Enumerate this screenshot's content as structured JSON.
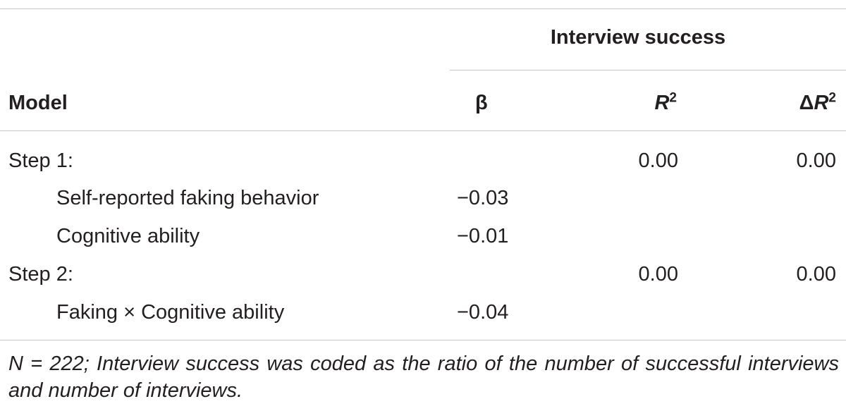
{
  "table": {
    "group_header": "Interview success",
    "columns": {
      "model": "Model",
      "beta": "β",
      "r2_letter": "R",
      "r2_exp": "2",
      "dr2_delta": "Δ",
      "dr2_letter": "R",
      "dr2_exp": "2"
    },
    "rows": [
      {
        "label": "Step 1:",
        "beta": "",
        "r2": "0.00",
        "dr2": "0.00"
      },
      {
        "label": "Self-reported faking behavior",
        "beta": "−0.03",
        "r2": "",
        "dr2": ""
      },
      {
        "label": "Cognitive ability",
        "beta": "−0.01",
        "r2": "",
        "dr2": ""
      },
      {
        "label": "Step 2:",
        "beta": "",
        "r2": "0.00",
        "dr2": "0.00"
      },
      {
        "label": "Faking × Cognitive ability",
        "beta": "−0.04",
        "r2": "",
        "dr2": ""
      }
    ],
    "note": "N = 222; Interview success was coded as the ratio of the number of successful interviews and number of interviews."
  }
}
